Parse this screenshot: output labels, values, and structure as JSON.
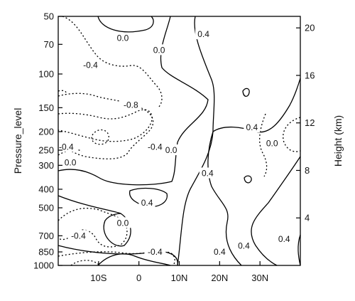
{
  "chart_data": {
    "type": "contour",
    "title": "",
    "xlabel": "",
    "ylabel_left": "Pressure_level",
    "ylabel_right": "Height (km)",
    "x_ticks": [
      "10S",
      "0",
      "10N",
      "20N",
      "30N"
    ],
    "x_tick_values": [
      -10,
      0,
      10,
      20,
      30
    ],
    "xlim": [
      -20,
      40
    ],
    "y_left_ticks": [
      "50",
      "70",
      "100",
      "150",
      "200",
      "250",
      "300",
      "400",
      "500",
      "700",
      "850",
      "1000"
    ],
    "y_left_values": [
      50,
      70,
      100,
      150,
      200,
      250,
      300,
      400,
      500,
      700,
      850,
      1000
    ],
    "y_right_ticks": [
      "20",
      "16",
      "12",
      "8",
      "4"
    ],
    "y_right_values": [
      20,
      16,
      12,
      8,
      4
    ],
    "ylim_hPa": [
      1000,
      50
    ],
    "contour_levels": [
      -0.8,
      -0.4,
      0.0,
      0.4
    ],
    "negative_contours_style": "dotted",
    "positive_contours_style": "solid",
    "contour_labels": [
      {
        "text": "0.0",
        "lat": -4,
        "p": 65
      },
      {
        "text": "-0.4",
        "lat": -12,
        "p": 90
      },
      {
        "text": "0.0",
        "lat": 5,
        "p": 75
      },
      {
        "text": "0.4",
        "lat": 16,
        "p": 62
      },
      {
        "text": "-0.8",
        "lat": -2,
        "p": 145
      },
      {
        "text": "-0.4",
        "lat": -18,
        "p": 240
      },
      {
        "text": "-0.4",
        "lat": 4,
        "p": 240
      },
      {
        "text": "0.0",
        "lat": 8,
        "p": 250
      },
      {
        "text": "0.4",
        "lat": 28,
        "p": 190
      },
      {
        "text": "0.0",
        "lat": 33,
        "p": 230
      },
      {
        "text": "0.0",
        "lat": -17,
        "p": 290
      },
      {
        "text": "0.4",
        "lat": 17,
        "p": 330
      },
      {
        "text": "0.4",
        "lat": 2,
        "p": 470
      },
      {
        "text": "0.0",
        "lat": -4,
        "p": 600
      },
      {
        "text": "-0.4",
        "lat": -15,
        "p": 700
      },
      {
        "text": "-0.4",
        "lat": 4,
        "p": 850
      },
      {
        "text": "0.4",
        "lat": 20,
        "p": 850
      },
      {
        "text": "0.4",
        "lat": 26,
        "p": 790
      },
      {
        "text": "0.4",
        "lat": 36,
        "p": 730
      }
    ]
  }
}
